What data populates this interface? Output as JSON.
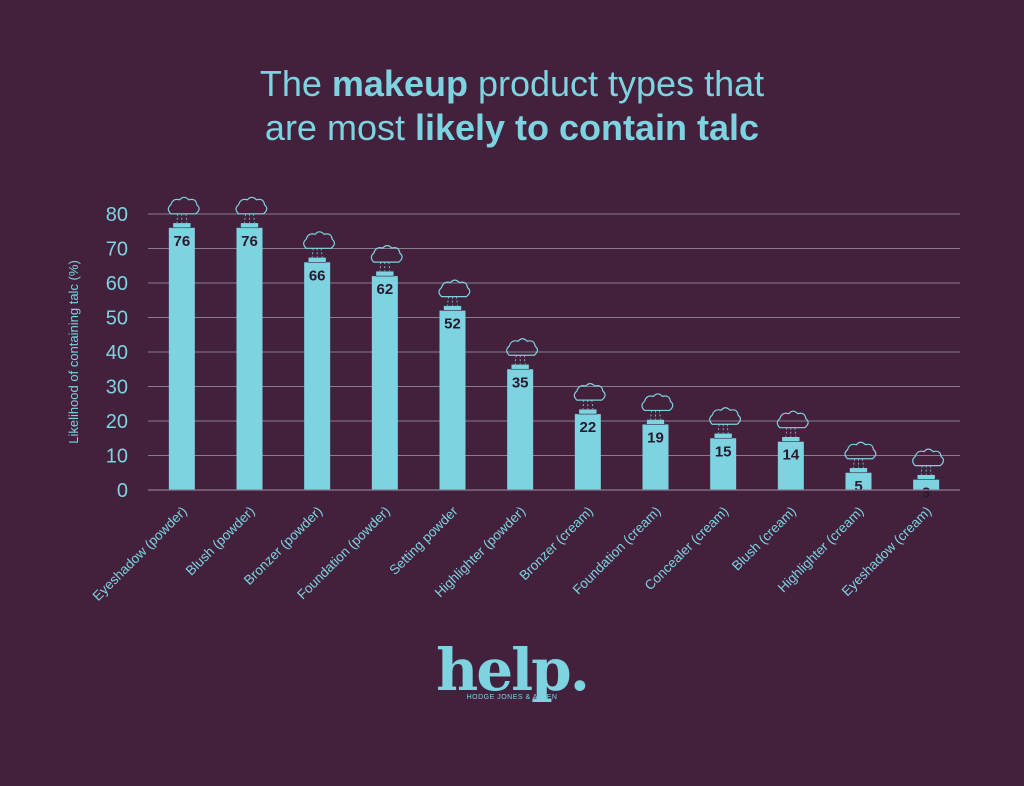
{
  "title": {
    "line1_pre": "The ",
    "line1_bold": "makeup",
    "line1_post": " product types that",
    "line2_pre": "are most ",
    "line2_bold": "likely to contain talc"
  },
  "logo": {
    "word": "help.",
    "subtitle": "HODGE JONES & ALLEN"
  },
  "colors": {
    "background": "#43213d",
    "accent": "#7dd3e0",
    "value_label": "#2a1a30",
    "grid": "#8a7c8f"
  },
  "chart_data": {
    "type": "bar",
    "title": "The makeup product types that are most likely to contain talc",
    "xlabel": "",
    "ylabel": "Likelihood of containing talc (%)",
    "ylim": [
      0,
      80
    ],
    "yticks": [
      0,
      10,
      20,
      30,
      40,
      50,
      60,
      70,
      80
    ],
    "grid": true,
    "categories": [
      "Eyeshadow (powder)",
      "Blush (powder)",
      "Bronzer (powder)",
      "Foundation (powder)",
      "Setting powder",
      "Highlighter (powder)",
      "Bronzer (cream)",
      "Foundation (cream)",
      "Concealer (cream)",
      "Blush (cream)",
      "Highlighter (cream)",
      "Eyeshadow (cream)"
    ],
    "values": [
      76,
      76,
      66,
      62,
      52,
      35,
      22,
      19,
      15,
      14,
      5,
      3
    ]
  }
}
